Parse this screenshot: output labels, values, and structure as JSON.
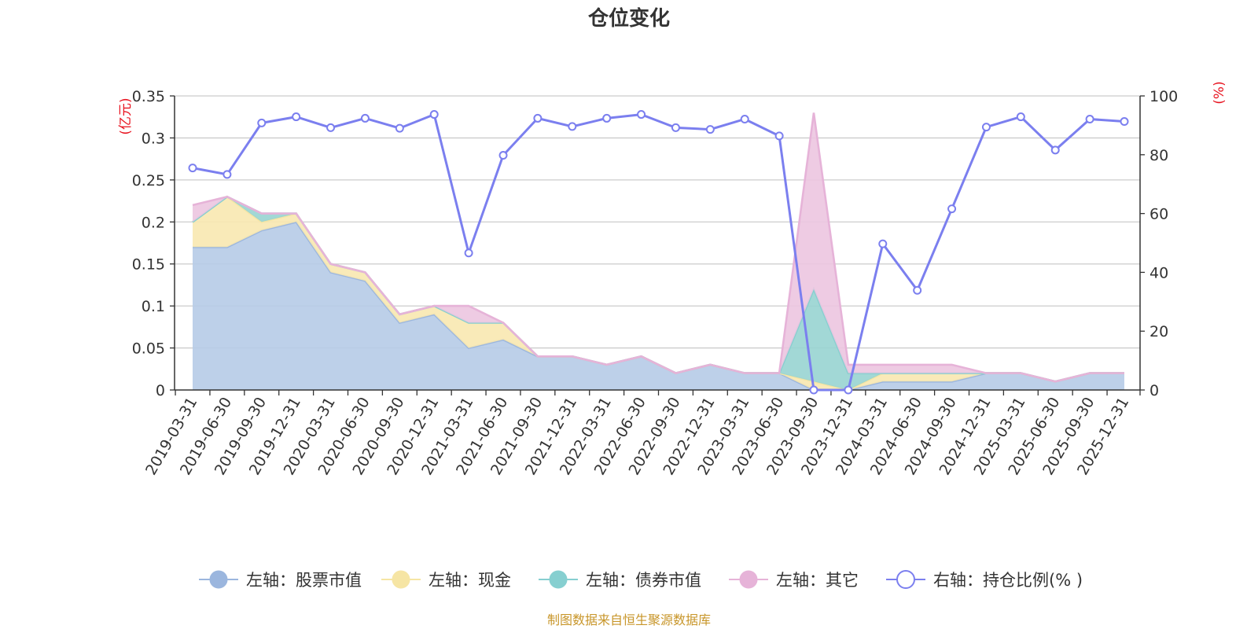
{
  "title": "仓位变化",
  "source_note": "制图数据来自恒生聚源数据库",
  "chart_data": {
    "type": "area",
    "title": "仓位变化",
    "left_axis": {
      "label": "(亿元)",
      "min": 0,
      "max": 0.35,
      "ticks": [
        0,
        0.05,
        0.1,
        0.15,
        0.2,
        0.25,
        0.3,
        0.35
      ],
      "tick_labels": [
        "0",
        "0.05",
        "0.1",
        "0.15",
        "0.2",
        "0.25",
        "0.3",
        "0.35"
      ]
    },
    "right_axis": {
      "label": "(%)",
      "min": 0,
      "max": 100,
      "ticks": [
        0,
        20,
        40,
        60,
        80,
        100
      ],
      "tick_labels": [
        "0",
        "20",
        "40",
        "60",
        "80",
        "100"
      ]
    },
    "categories": [
      "2019-03-31",
      "2019-06-30",
      "2019-09-30",
      "2019-12-31",
      "2020-03-31",
      "2020-06-30",
      "2020-09-30",
      "2020-12-31",
      "2021-03-31",
      "2021-06-30",
      "2021-09-30",
      "2021-12-31",
      "2022-03-31",
      "2022-06-30",
      "2022-09-30",
      "2022-12-31",
      "2023-03-31",
      "2023-06-30",
      "2023-09-30",
      "2023-12-31",
      "2024-03-31",
      "2024-06-30",
      "2024-09-30",
      "2024-12-31",
      "2025-03-31",
      "2025-06-30",
      "2025-09-30",
      "2025-12-31"
    ],
    "series": [
      {
        "name": "左轴：股票市值",
        "axis": "left",
        "kind": "stacked-area",
        "color": "#9bb6de",
        "fill": "#b6cbe7",
        "values": [
          0.17,
          0.17,
          0.19,
          0.2,
          0.14,
          0.13,
          0.08,
          0.09,
          0.05,
          0.06,
          0.04,
          0.04,
          0.03,
          0.04,
          0.02,
          0.03,
          0.02,
          0.02,
          0.0,
          0.0,
          0.01,
          0.01,
          0.01,
          0.02,
          0.02,
          0.01,
          0.02,
          0.02
        ]
      },
      {
        "name": "左轴：现金",
        "axis": "left",
        "kind": "stacked-area",
        "color": "#f6e5a4",
        "fill": "#f8e8b0",
        "values": [
          0.03,
          0.06,
          0.01,
          0.01,
          0.01,
          0.01,
          0.01,
          0.01,
          0.03,
          0.02,
          0.0,
          0.0,
          0.0,
          0.0,
          0.0,
          0.0,
          0.0,
          0.0,
          0.01,
          0.0,
          0.01,
          0.01,
          0.01,
          0.0,
          0.0,
          0.0,
          0.0,
          0.0
        ]
      },
      {
        "name": "左轴：债券市值",
        "axis": "left",
        "kind": "stacked-area",
        "color": "#86cfd0",
        "fill": "#98d4d2",
        "values": [
          0.0,
          0.0,
          0.01,
          0.0,
          0.0,
          0.0,
          0.0,
          0.0,
          0.0,
          0.0,
          0.0,
          0.0,
          0.0,
          0.0,
          0.0,
          0.0,
          0.0,
          0.0,
          0.11,
          0.02,
          0.0,
          0.0,
          0.0,
          0.0,
          0.0,
          0.0,
          0.0,
          0.0
        ]
      },
      {
        "name": "左轴：其它",
        "axis": "left",
        "kind": "stacked-area",
        "color": "#e6b3d8",
        "fill": "#ecc5e0",
        "values": [
          0.02,
          0.0,
          0.0,
          0.0,
          0.0,
          0.0,
          0.0,
          0.0,
          0.02,
          0.0,
          0.0,
          0.0,
          0.0,
          0.0,
          0.0,
          0.0,
          0.0,
          0.0,
          0.21,
          0.01,
          0.01,
          0.01,
          0.01,
          0.0,
          0.0,
          0.0,
          0.0,
          0.0
        ]
      },
      {
        "name": "右轴：持仓比例(% )",
        "axis": "right",
        "kind": "line",
        "color": "#7b7fef",
        "values": [
          75.5,
          73.3,
          90.8,
          92.9,
          89.2,
          92.4,
          89.0,
          93.7,
          46.6,
          79.8,
          92.4,
          89.6,
          92.4,
          93.7,
          89.2,
          88.6,
          92.1,
          86.4,
          0.0,
          0.0,
          49.7,
          33.9,
          61.6,
          89.4,
          92.9,
          81.6,
          92.1,
          91.3
        ]
      }
    ],
    "legend_position": "bottom",
    "grid": true
  },
  "legend": [
    {
      "label": "左轴：股票市值",
      "color": "#9bb6de",
      "fill": "#9bb6de",
      "marker": "filled"
    },
    {
      "label": "左轴：现金",
      "color": "#f6e5a4",
      "fill": "#f6e5a4",
      "marker": "filled"
    },
    {
      "label": "左轴：债券市值",
      "color": "#86cfd0",
      "fill": "#86cfd0",
      "marker": "filled"
    },
    {
      "label": "左轴：其它",
      "color": "#e6b3d8",
      "fill": "#e6b3d8",
      "marker": "filled"
    },
    {
      "label": "右轴：持仓比例(% )",
      "color": "#7b7fef",
      "fill": "#ffffff",
      "marker": "hollow"
    }
  ]
}
